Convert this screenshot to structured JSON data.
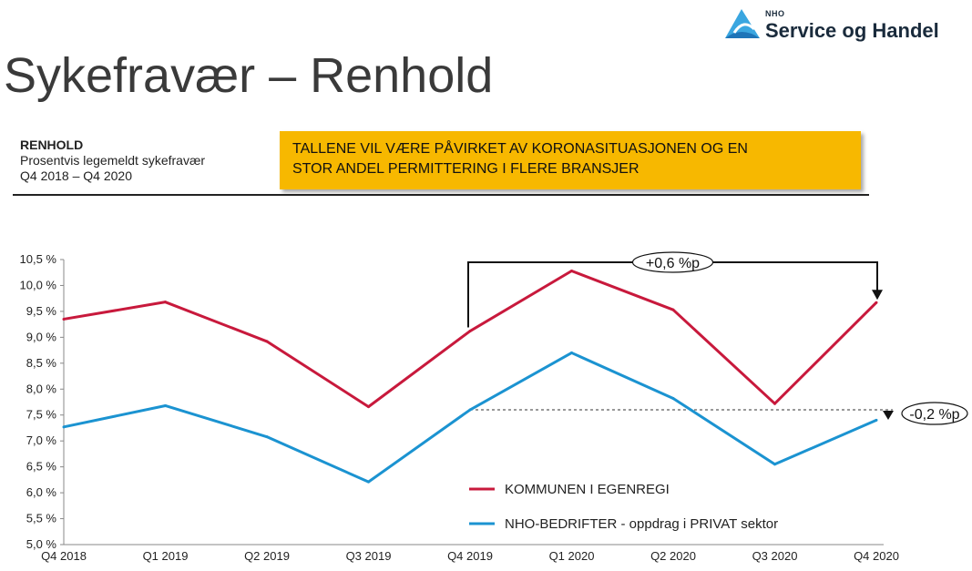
{
  "logo": {
    "org": "NHO",
    "name": "Service og Handel"
  },
  "title": "Sykefravær – Renhold",
  "info": {
    "heading": "RENHOLD",
    "line1": "Prosentvis legemeldt sykefravær",
    "line2": "Q4 2018 – Q4 2020"
  },
  "banner": {
    "line1": "TALLENE VIL VÆRE PÅVIRKET AV KORONASITUASJONEN OG EN",
    "line2": "STOR ANDEL PERMITTERING I FLERE BRANSJER"
  },
  "chart_data": {
    "type": "line",
    "categories": [
      "Q4 2018",
      "Q1 2019",
      "Q2 2019",
      "Q3 2019",
      "Q4 2019",
      "Q1 2020",
      "Q2 2020",
      "Q3 2020",
      "Q4 2020"
    ],
    "ylim": [
      5.0,
      10.5
    ],
    "yticks": [
      {
        "value": 5.0,
        "label": "5,0 %"
      },
      {
        "value": 5.5,
        "label": "5,5 %"
      },
      {
        "value": 6.0,
        "label": "6,0 %"
      },
      {
        "value": 6.5,
        "label": "6,5 %"
      },
      {
        "value": 7.0,
        "label": "7,0 %"
      },
      {
        "value": 7.5,
        "label": "7,5 %"
      },
      {
        "value": 8.0,
        "label": "8,0 %"
      },
      {
        "value": 8.5,
        "label": "8,5 %"
      },
      {
        "value": 9.0,
        "label": "9,0 %"
      },
      {
        "value": 9.5,
        "label": "9,5 %"
      },
      {
        "value": 10.0,
        "label": "10,0 %"
      },
      {
        "value": 10.5,
        "label": "10,5 %"
      }
    ],
    "grid": false,
    "legend_position": "bottom-right",
    "series": [
      {
        "name": "KOMMUNEN I EGENREGI",
        "color": "#c8193c",
        "values": [
          9.35,
          9.68,
          8.92,
          7.66,
          9.12,
          10.28,
          9.53,
          7.72,
          9.67
        ]
      },
      {
        "name": "NHO-BEDRIFTER - oppdrag i PRIVAT sektor",
        "color": "#1b93d1",
        "values": [
          7.27,
          7.68,
          7.08,
          6.21,
          7.6,
          8.7,
          7.82,
          6.55,
          7.4
        ]
      }
    ],
    "annotations": [
      {
        "label": "+0,6 %p",
        "series": 0,
        "from_category": "Q4 2019",
        "to_category": "Q4 2020"
      },
      {
        "label": "-0,2 %p",
        "series": 1,
        "from_category": "Q4 2019",
        "to_category": "Q4 2020"
      }
    ]
  }
}
